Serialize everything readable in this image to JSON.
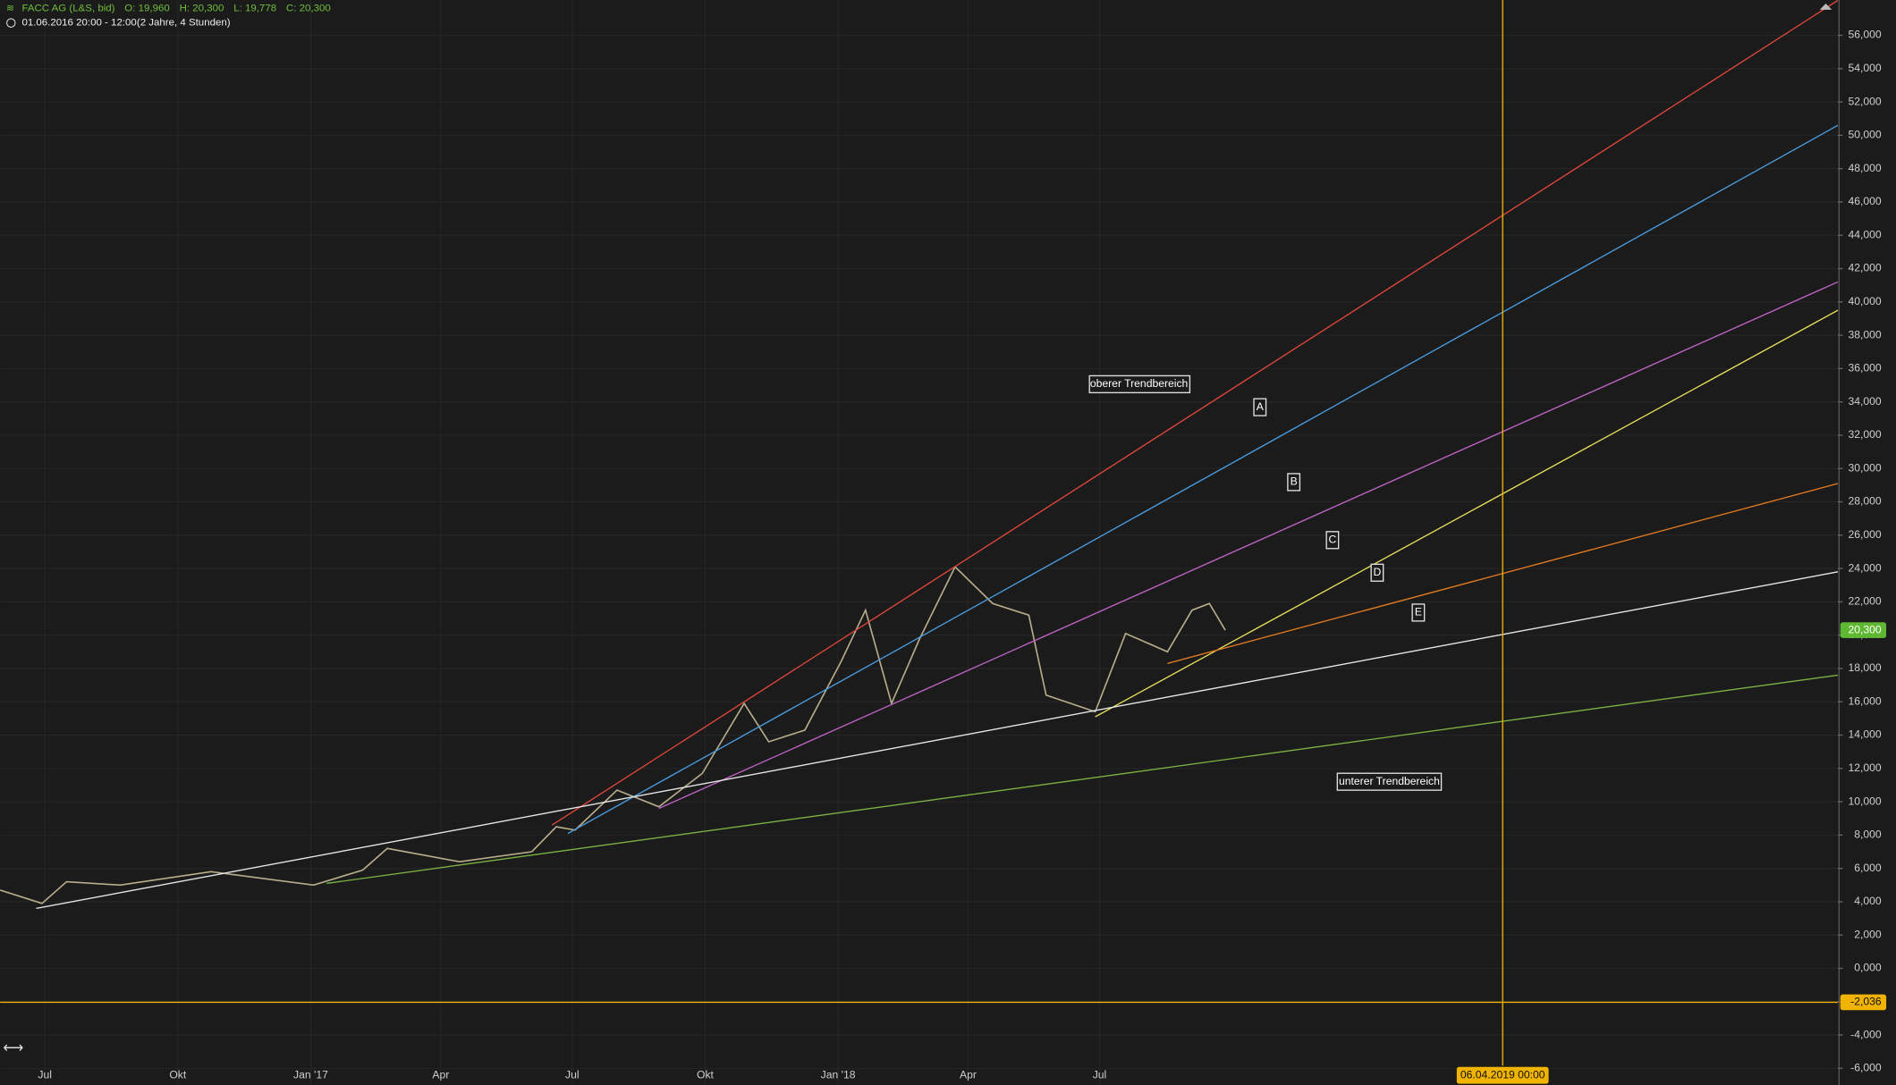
{
  "chart_data": {
    "type": "line",
    "title": "FACC AG (L&S, bid)",
    "info": [
      "O: 19,960",
      "H: 20,300",
      "L: 19,778",
      "C: 20,300"
    ],
    "subtitle": "01.06.2016 20:00 - 12:00",
    "period": "(2 Jahre, 4 Stunden)",
    "annotations": [
      "oberer Trendbereich",
      "A",
      "B",
      "C",
      "D",
      "E",
      "unterer Trendbereich"
    ],
    "grid": true,
    "xlim": [
      "2016-05-31",
      "2019-11-24"
    ],
    "xticks": [
      {
        "value": "2016-07-01",
        "label": "Jul"
      },
      {
        "value": "2016-10-01",
        "label": "Okt"
      },
      {
        "value": "2017-01-01",
        "label": "Jan '17"
      },
      {
        "value": "2017-04-01",
        "label": "Apr"
      },
      {
        "value": "2017-07-01",
        "label": "Jul"
      },
      {
        "value": "2017-10-01",
        "label": "Okt"
      },
      {
        "value": "2018-01-01",
        "label": "Jan '18"
      },
      {
        "value": "2018-04-01",
        "label": "Apr"
      },
      {
        "value": "2018-07-01",
        "label": "Jul"
      }
    ],
    "ylim": [
      -7,
      58.12
    ],
    "yticks": [
      {
        "value": -6,
        "label": "-6,000"
      },
      {
        "value": -4,
        "label": "-4,000"
      },
      {
        "value": -2,
        "label": "-2,000"
      },
      {
        "value": 0,
        "label": "0,000"
      },
      {
        "value": 2,
        "label": "2,000"
      },
      {
        "value": 4,
        "label": "4,000"
      },
      {
        "value": 6,
        "label": "6,000"
      },
      {
        "value": 8,
        "label": "8,000"
      },
      {
        "value": 10,
        "label": "10,000"
      },
      {
        "value": 12,
        "label": "12,000"
      },
      {
        "value": 14,
        "label": "14,000"
      },
      {
        "value": 16,
        "label": "16,000"
      },
      {
        "value": 18,
        "label": "18,000"
      },
      {
        "value": 20,
        "label": "20,000"
      },
      {
        "value": 22,
        "label": "22,000"
      },
      {
        "value": 24,
        "label": "24,000"
      },
      {
        "value": 26,
        "label": "26,000"
      },
      {
        "value": 28,
        "label": "28,000"
      },
      {
        "value": 30,
        "label": "30,000"
      },
      {
        "value": 32,
        "label": "32,000"
      },
      {
        "value": 34,
        "label": "34,000"
      },
      {
        "value": 36,
        "label": "36,000"
      },
      {
        "value": 38,
        "label": "38,000"
      },
      {
        "value": 40,
        "label": "40,000"
      },
      {
        "value": 42,
        "label": "42,000"
      },
      {
        "value": 44,
        "label": "44,000"
      },
      {
        "value": 46,
        "label": "46,000"
      },
      {
        "value": 48,
        "label": "48,000"
      },
      {
        "value": 50,
        "label": "50,000"
      },
      {
        "value": 52,
        "label": "52,000"
      },
      {
        "value": 54,
        "label": "54,000"
      },
      {
        "value": 56,
        "label": "56,000"
      }
    ],
    "series": [
      {
        "color": "#b8ad8c",
        "x": [
          "2016-05-31",
          "2016-06-29",
          "2016-07-16",
          "2016-08-22",
          "2016-10-24",
          "2017-01-03",
          "2017-02-06",
          "2017-02-23",
          "2017-04-14",
          "2017-06-03",
          "2017-06-20",
          "2017-07-03",
          "2017-08-01",
          "2017-08-30",
          "2017-09-29",
          "2017-10-28",
          "2017-11-14",
          "2017-12-09",
          "2018-01-03",
          "2018-01-20",
          "2018-02-07",
          "2018-02-26",
          "2018-03-23",
          "2018-04-18",
          "2018-05-13",
          "2018-05-25",
          "2018-06-28",
          "2018-07-19",
          "2018-08-17",
          "2018-09-03",
          "2018-09-15",
          "2018-09-26"
        ],
        "values": [
          4.7,
          3.9,
          5.2,
          5.0,
          5.8,
          5.0,
          5.9,
          7.2,
          6.4,
          7.0,
          8.5,
          8.3,
          10.7,
          9.7,
          11.7,
          15.9,
          13.6,
          14.3,
          18.4,
          21.5,
          15.9,
          19.7,
          24.1,
          21.9,
          21.2,
          16.4,
          15.4,
          20.1,
          19.0,
          21.5,
          21.9,
          20.3
        ]
      },
      {
        "color": "#e0463c",
        "x": [
          "2017-06-17",
          "2019-11-24"
        ],
        "values": [
          8.6,
          58.1
        ]
      },
      {
        "color": "#4a9de0",
        "x": [
          "2017-06-28",
          "2019-11-24"
        ],
        "values": [
          8.1,
          50.6
        ]
      },
      {
        "color": "#c064c8",
        "x": [
          "2017-08-30",
          "2019-11-24"
        ],
        "values": [
          9.6,
          41.2
        ]
      },
      {
        "color": "#e6de5c",
        "x": [
          "2018-06-28",
          "2019-11-24"
        ],
        "values": [
          15.1,
          39.5
        ]
      },
      {
        "color": "#e07a20",
        "x": [
          "2018-08-17",
          "2019-11-24"
        ],
        "values": [
          18.3,
          29.1
        ]
      },
      {
        "color": "#e8e8e8",
        "x": [
          "2016-06-25",
          "2019-11-24"
        ],
        "values": [
          3.6,
          23.8
        ]
      },
      {
        "color": "#7cb342",
        "x": [
          "2017-01-12",
          "2019-11-24"
        ],
        "values": [
          5.1,
          17.6
        ]
      }
    ],
    "last_price": {
      "value": 20.3,
      "label": "20,300",
      "color": "#5fb832"
    },
    "hline": {
      "value": -2.036,
      "label": "-2,036",
      "color": "#f0b400"
    },
    "crosshair": {
      "x": "2019-04-06",
      "label": "06.04.2019 00:00",
      "color": "#f0b400"
    }
  }
}
